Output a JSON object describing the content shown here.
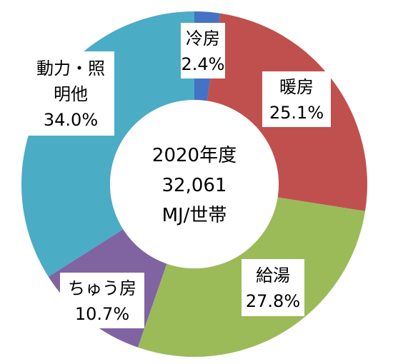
{
  "chart_data": {
    "type": "pie",
    "donut": true,
    "start": "top",
    "direction": "clockwise",
    "legend": "none",
    "center_label": [
      "2020年度",
      "32,061",
      "MJ/世帯"
    ],
    "slices": [
      {
        "category": "冷房",
        "label_lines": [
          "冷房"
        ],
        "value": 2.4,
        "value_label": "2.4%",
        "color": "#4472C4"
      },
      {
        "category": "暖房",
        "label_lines": [
          "暖房"
        ],
        "value": 25.1,
        "value_label": "25.1%",
        "color": "#C0504D"
      },
      {
        "category": "給湯",
        "label_lines": [
          "給湯"
        ],
        "value": 27.8,
        "value_label": "27.8%",
        "color": "#9BBB59"
      },
      {
        "category": "ちゅう房",
        "label_lines": [
          "ちゅう房"
        ],
        "value": 10.7,
        "value_label": "10.7%",
        "color": "#8064A2"
      },
      {
        "category": "動力・照明他",
        "label_lines": [
          "動力・照",
          "明他"
        ],
        "value": 34.0,
        "value_label": "34.0%",
        "color": "#4BACC6"
      }
    ]
  }
}
